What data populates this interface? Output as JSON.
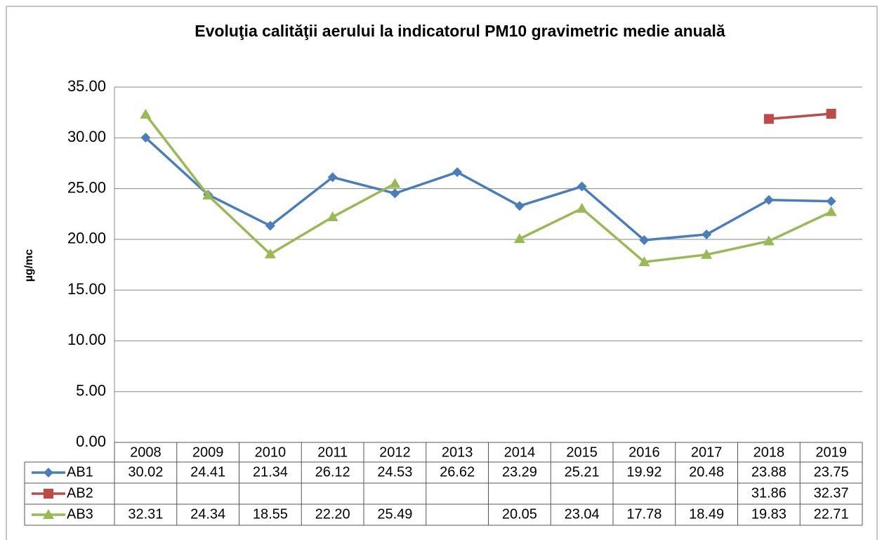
{
  "chart_data": {
    "type": "line",
    "title": "Evoluţia calităţii aerului la indicatorul PM10 gravimetric medie anuală",
    "y_label": "µg/mc",
    "categories": [
      "2008",
      "2009",
      "2010",
      "2011",
      "2012",
      "2013",
      "2014",
      "2015",
      "2016",
      "2017",
      "2018",
      "2019"
    ],
    "series": [
      {
        "name": "AB1",
        "color": "#4a7ebb",
        "marker": "diamond",
        "values": [
          30.02,
          24.41,
          21.34,
          26.12,
          24.53,
          26.62,
          23.29,
          25.21,
          19.92,
          20.48,
          23.88,
          23.75
        ],
        "value_labels": [
          "30.02",
          "24.41",
          "21.34",
          "26.12",
          "24.53",
          "26.62",
          "23.29",
          "25.21",
          "19.92",
          "20.48",
          "23.88",
          "23.75"
        ]
      },
      {
        "name": "AB2",
        "color": "#be4b48",
        "marker": "square",
        "values": [
          null,
          null,
          null,
          null,
          null,
          null,
          null,
          null,
          null,
          null,
          31.86,
          32.37
        ],
        "value_labels": [
          null,
          null,
          null,
          null,
          null,
          null,
          null,
          null,
          null,
          null,
          "31.86",
          "32.37"
        ]
      },
      {
        "name": "AB3",
        "color": "#98b954",
        "marker": "triangle",
        "values": [
          32.31,
          24.34,
          18.55,
          22.2,
          25.49,
          null,
          20.05,
          23.04,
          17.78,
          18.49,
          19.83,
          22.71
        ],
        "value_labels": [
          "32.31",
          "24.34",
          "18.55",
          "22.20",
          "25.49",
          null,
          "20.05",
          "23.04",
          "17.78",
          "18.49",
          "19.83",
          "22.71"
        ]
      }
    ],
    "ylim": [
      0,
      35
    ],
    "yticks": [
      {
        "value": 0,
        "label": "0.00"
      },
      {
        "value": 5,
        "label": "5.00"
      },
      {
        "value": 10,
        "label": "10.00"
      },
      {
        "value": 15,
        "label": "15.00"
      },
      {
        "value": 20,
        "label": "20.00"
      },
      {
        "value": 25,
        "label": "25.00"
      },
      {
        "value": 30,
        "label": "30.00"
      },
      {
        "value": 35,
        "label": "35.00"
      }
    ],
    "grid": true
  }
}
